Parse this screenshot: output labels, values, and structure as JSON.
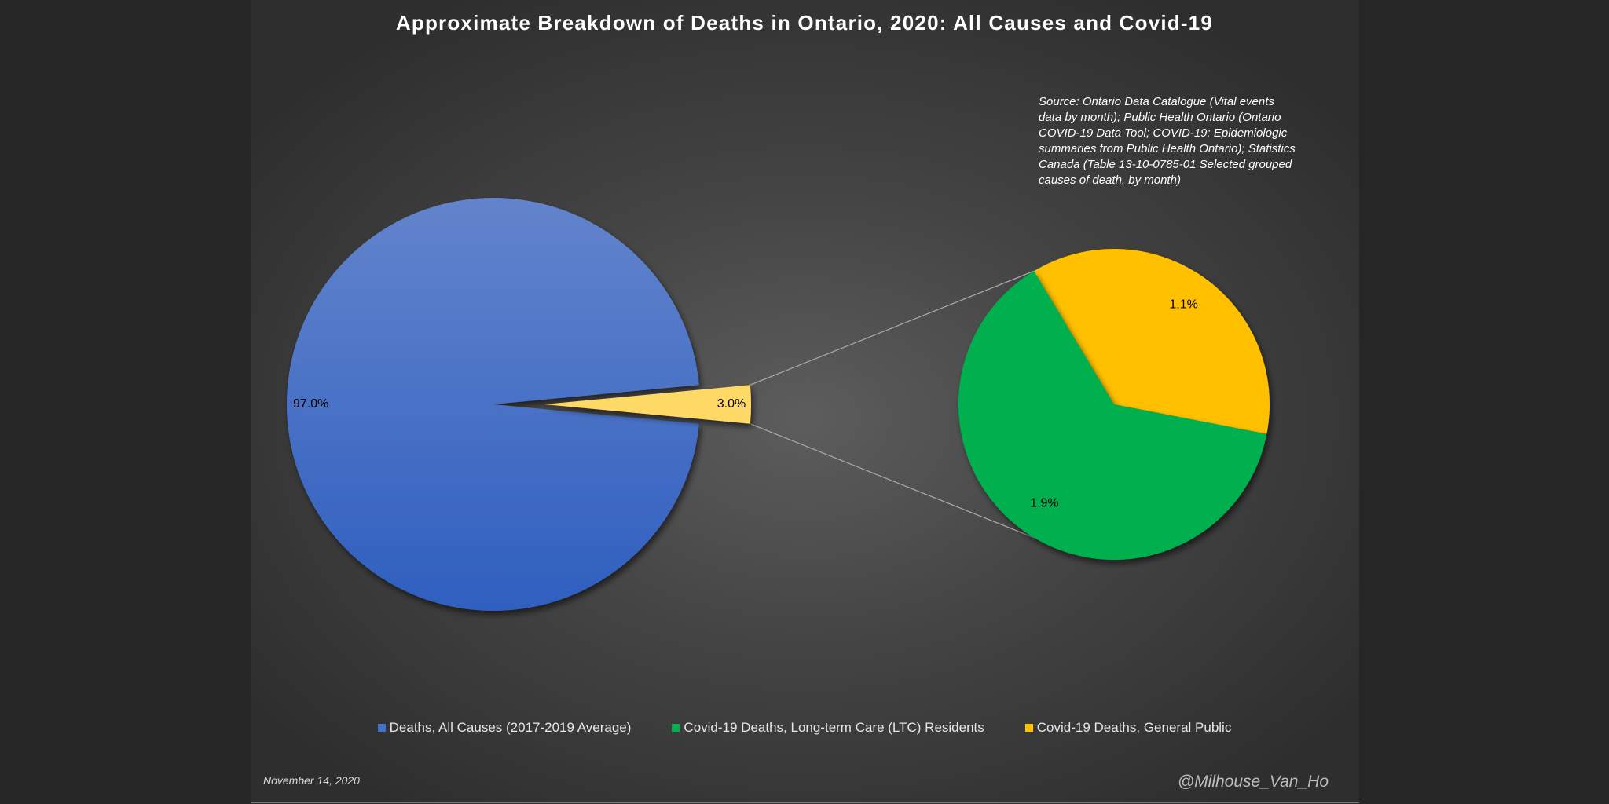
{
  "title": "Approximate Breakdown of Deaths in Ontario, 2020: All Causes and Covid-19",
  "source_note": "Source: Ontario Data Catalogue (Vital events data by month); Public Health Ontario (Ontario COVID-19 Data Tool; COVID-19: Epidemiologic summaries from Public Health Ontario); Statistics Canada (Table 13-10-0785-01 Selected grouped causes of death, by month)",
  "date": "November 14, 2020",
  "handle": "@Milhouse_Van_Ho",
  "chart_data": {
    "type": "pie",
    "subtype": "pie-of-pie",
    "main_pie": {
      "slices": [
        {
          "label": "Deaths, All Causes (2017-2019 Average)",
          "value": 97.0,
          "display": "97.0%",
          "color": "#4472C4"
        },
        {
          "label": "",
          "value": 3.0,
          "display": "3.0%",
          "color": "#FFD966"
        }
      ]
    },
    "secondary_pie": {
      "slices": [
        {
          "label": "Covid-19 Deaths, General Public",
          "value": 1.1,
          "display": "1.1%",
          "color": "#FFC000"
        },
        {
          "label": "Covid-19 Deaths, Long-term Care (LTC) Residents",
          "value": 1.9,
          "display": "1.9%",
          "color": "#00B050"
        }
      ]
    },
    "legend": [
      {
        "label": "Deaths, All Causes (2017-2019 Average)",
        "color": "#4472C4"
      },
      {
        "label": "Covid-19 Deaths, Long-term Care (LTC) Residents",
        "color": "#00B050"
      },
      {
        "label": "Covid-19 Deaths, General Public",
        "color": "#FFC000"
      }
    ],
    "legend_position": "bottom"
  }
}
